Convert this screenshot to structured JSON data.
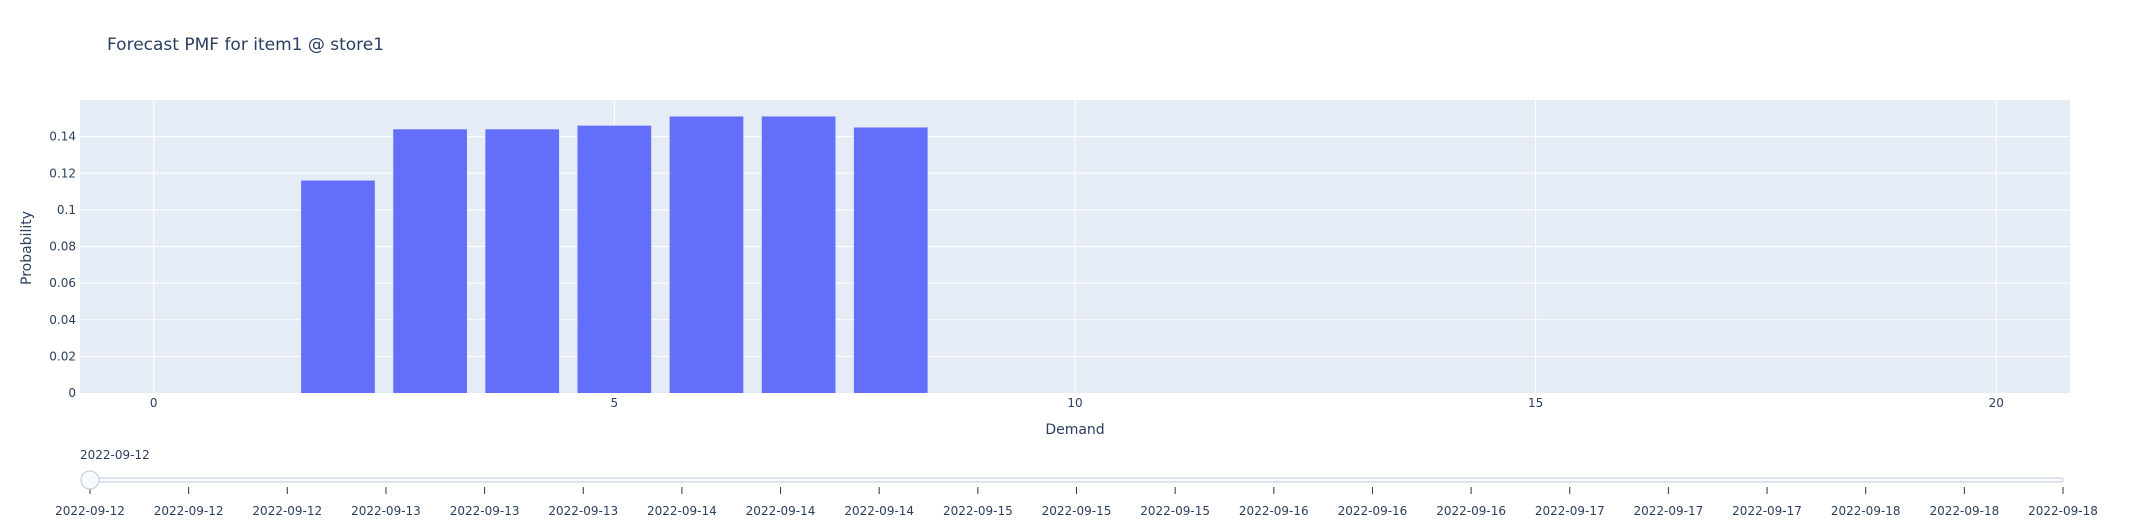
{
  "chart_data": {
    "type": "bar",
    "title": "Forecast PMF for item1 @ store1",
    "xlabel": "Demand",
    "ylabel": "Probability",
    "x": [
      0,
      1,
      2,
      3,
      4,
      5,
      6,
      7,
      8,
      9,
      10,
      11,
      12,
      13,
      14,
      15,
      16,
      17,
      18,
      19,
      20
    ],
    "values": [
      0,
      0,
      0.116,
      0.144,
      0.144,
      0.146,
      0.151,
      0.151,
      0.145,
      0,
      0,
      0,
      0,
      0,
      0,
      0,
      0,
      0,
      0,
      0,
      0
    ],
    "xlim": [
      -0.8,
      20.8
    ],
    "ylim": [
      0,
      0.16
    ],
    "xticks": [
      {
        "value": 0,
        "label": "0"
      },
      {
        "value": 5,
        "label": "5"
      },
      {
        "value": 10,
        "label": "10"
      },
      {
        "value": 15,
        "label": "15"
      },
      {
        "value": 20,
        "label": "20"
      }
    ],
    "yticks": [
      {
        "value": 0,
        "label": "0"
      },
      {
        "value": 0.02,
        "label": "0.02"
      },
      {
        "value": 0.04,
        "label": "0.04"
      },
      {
        "value": 0.06,
        "label": "0.06"
      },
      {
        "value": 0.08,
        "label": "0.08"
      },
      {
        "value": 0.1,
        "label": "0.1"
      },
      {
        "value": 0.12,
        "label": "0.12"
      },
      {
        "value": 0.14,
        "label": "0.14"
      }
    ],
    "grid": true,
    "colors": {
      "bar": "#636efa",
      "plot_background": "#e5ecf6",
      "grid": "#ffffff",
      "text": "#2a3f5f",
      "slider_rail": "#f8fafc",
      "slider_border": "#bec8d9"
    }
  },
  "slider": {
    "current_label": "2022-09-12",
    "active_index": 0,
    "steps": [
      "2022-09-12",
      "2022-09-12",
      "2022-09-12",
      "2022-09-13",
      "2022-09-13",
      "2022-09-13",
      "2022-09-14",
      "2022-09-14",
      "2022-09-14",
      "2022-09-15",
      "2022-09-15",
      "2022-09-15",
      "2022-09-16",
      "2022-09-16",
      "2022-09-16",
      "2022-09-17",
      "2022-09-17",
      "2022-09-17",
      "2022-09-18",
      "2022-09-18",
      "2022-09-18"
    ]
  }
}
